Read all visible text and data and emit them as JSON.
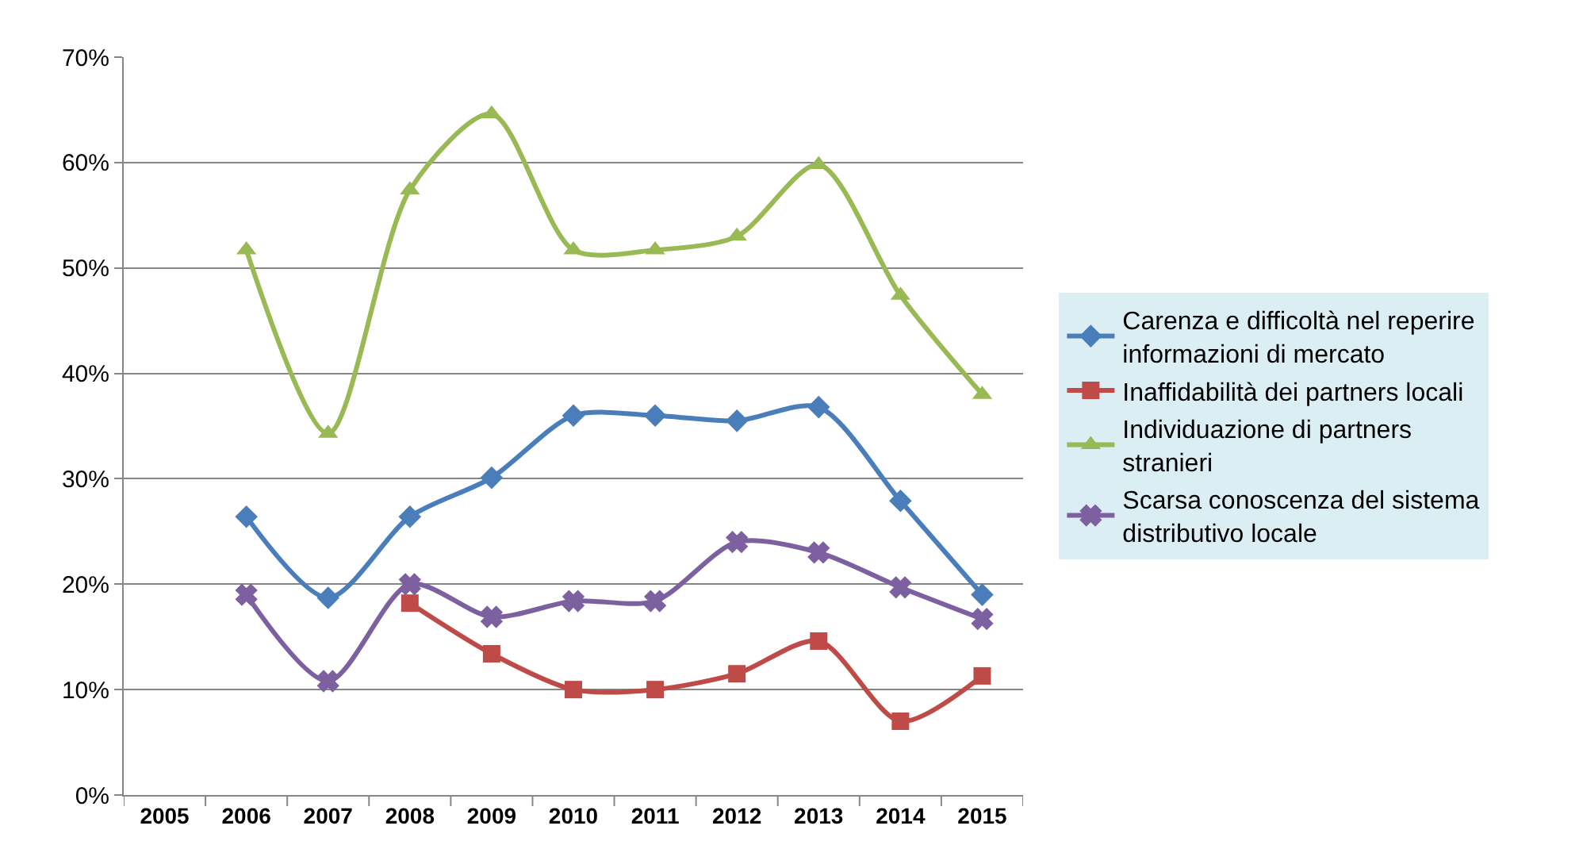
{
  "chart_data": {
    "type": "line",
    "categories": [
      "2005",
      "2006",
      "2007",
      "2008",
      "2009",
      "2010",
      "2011",
      "2012",
      "2013",
      "2014",
      "2015"
    ],
    "ylim": [
      0,
      70
    ],
    "yticks": [
      {
        "value": 0,
        "label": "0%"
      },
      {
        "value": 10,
        "label": "10%"
      },
      {
        "value": 20,
        "label": "20%"
      },
      {
        "value": 30,
        "label": "30%"
      },
      {
        "value": 40,
        "label": "40%"
      },
      {
        "value": 50,
        "label": "50%"
      },
      {
        "value": 60,
        "label": "60%"
      },
      {
        "value": 70,
        "label": "70%"
      }
    ],
    "grid": "y",
    "legend": "right",
    "line_style": "solid",
    "series": [
      {
        "name": "Carenza e difficoltà nel reperire informazioni di mercato",
        "color": "#4a7ebb",
        "marker": "diamond",
        "values": [
          null,
          26.4,
          18.7,
          26.4,
          30.1,
          36.0,
          36.0,
          35.5,
          36.8,
          27.9,
          19.0
        ]
      },
      {
        "name": "Inaffidabilità dei partners locali",
        "color": "#be4b48",
        "marker": "square",
        "values": [
          null,
          null,
          null,
          18.2,
          13.4,
          10.0,
          10.0,
          11.5,
          14.6,
          7.0,
          11.3
        ]
      },
      {
        "name": "Individuazione di partners stranieri",
        "color": "#98b954",
        "marker": "triangle",
        "values": [
          null,
          51.7,
          34.3,
          57.4,
          64.6,
          51.7,
          51.7,
          53.0,
          59.8,
          47.4,
          38.0
        ]
      },
      {
        "name": "Scarsa conoscenza del sistema distributivo locale",
        "color": "#7d60a0",
        "marker": "cross",
        "values": [
          null,
          19.0,
          10.8,
          20.0,
          16.9,
          18.4,
          18.4,
          24.0,
          23.0,
          19.7,
          16.7
        ]
      }
    ]
  }
}
